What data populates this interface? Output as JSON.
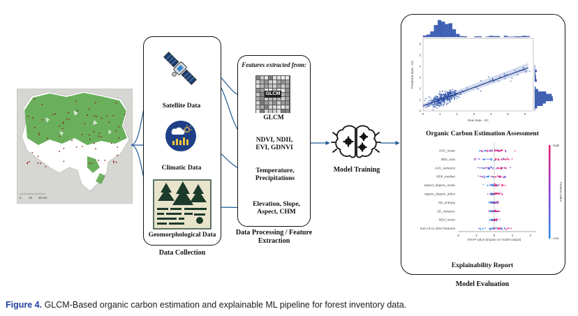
{
  "map": {
    "scale_ticks": [
      "0",
      "10",
      "20 km"
    ]
  },
  "collection": {
    "satellite_label": "Satellite Data",
    "climatic_label": "Climatic Data",
    "geo_label": "Geomorphological Data",
    "panel_label": "Data Collection"
  },
  "processing": {
    "header": "Features extracted from:",
    "glcm_icon_text": "GLCM",
    "glcm_label": "GLCM",
    "indices": "NDVI, NDII, EVI, GDNVI",
    "climate": "Temperature, Precipitations",
    "terrain": "Elevation, Slope, Aspect, CHM",
    "panel_label": "Data Processing / Feature Extraction"
  },
  "training": {
    "label": "Model Training"
  },
  "evaluation": {
    "scatter": {
      "xlabel": "Real data - SC",
      "ylabel": "Predicted data - SC",
      "x_ticks": [
        "0",
        "1",
        "2",
        "3",
        "4",
        "5",
        "6"
      ],
      "y_ticks": [
        "0",
        "1",
        "2",
        "3",
        "4",
        "5",
        "6"
      ]
    },
    "assessment_title": "Organic Carbon Estimation Assessment",
    "shap": {
      "features": [
        "AVG_mean",
        "NDII_max",
        "AVG_variance",
        "NDII_median",
        "aspect_degree_mean",
        "aspect_degree_stdev",
        "SD_entropy",
        "SD_variance",
        "NDII_mean",
        "Sum of 41 other features"
      ],
      "x_ticks": [
        "-2",
        "-1",
        "0",
        "1",
        "2"
      ],
      "xlabel": "SHAP value (impact on model output)",
      "color_high": "High",
      "color_low": "Low",
      "color_label": "Feature value"
    },
    "explainability_label": "Explainability Report",
    "panel_label": "Model Evaluation"
  },
  "caption": {
    "figure_number": "Figure 4.",
    "text": "GLCM-Based organic carbon estimation and explainable ML pipeline for forest inventory data."
  },
  "colors": {
    "scatter_blue": "#2b4fa8",
    "shap_high": "#e8196b",
    "shap_low": "#2a8ee8",
    "caption_blue": "#1f3f9a",
    "forest_green": "#4a9a3e"
  }
}
